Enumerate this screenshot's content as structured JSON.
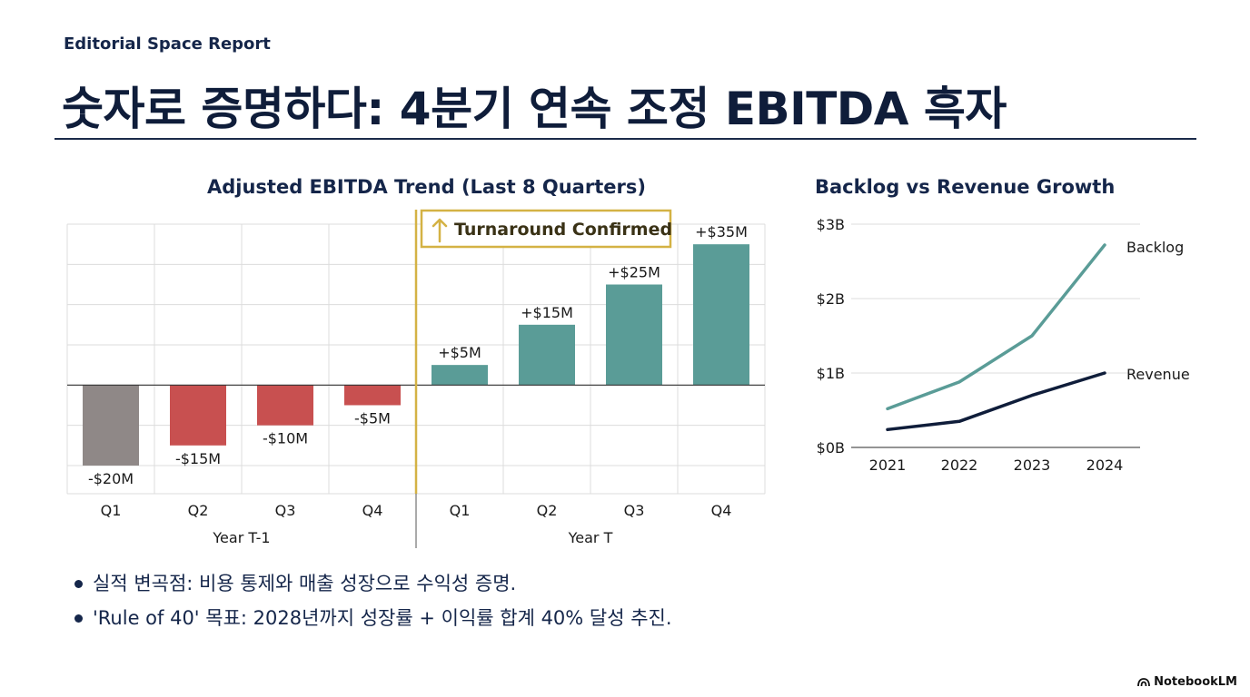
{
  "header": {
    "kicker": "Editorial Space Report",
    "title": "숫자로 증명하다: 4분기 연속 조정 EBITDA 흑자"
  },
  "colors": {
    "negative_red": "#c85050",
    "negative_gray": "#8f8887",
    "positive_teal": "#5a9c97",
    "highlight_gold": "#d4b244",
    "navy": "#0f1d3a"
  },
  "chart_data": [
    {
      "type": "bar",
      "title": "Adjusted EBITDA Trend (Last 8 Quarters)",
      "categories": [
        "Q1",
        "Q2",
        "Q3",
        "Q4",
        "Q1",
        "Q2",
        "Q3",
        "Q4"
      ],
      "groups": [
        {
          "label": "Year T-1",
          "categories": [
            "Q1",
            "Q2",
            "Q3",
            "Q4"
          ]
        },
        {
          "label": "Year T",
          "categories": [
            "Q1",
            "Q2",
            "Q3",
            "Q4"
          ]
        }
      ],
      "values": [
        -20,
        -15,
        -10,
        -5,
        5,
        15,
        25,
        35
      ],
      "data_labels": [
        "-$20M",
        "-$15M",
        "-$10M",
        "-$5M",
        "+$5M",
        "+$15M",
        "+$25M",
        "+$35M"
      ],
      "bar_colors": [
        "#8f8887",
        "#c85050",
        "#c85050",
        "#c85050",
        "#5a9c97",
        "#5a9c97",
        "#5a9c97",
        "#5a9c97"
      ],
      "ylim": [
        -27,
        40
      ],
      "grid": true,
      "annotation": {
        "text": "Turnaround Confirmed",
        "icon": "arrow-up-icon",
        "between_index": 3
      }
    },
    {
      "type": "line",
      "title": "Backlog vs Revenue Growth",
      "x": [
        "2021",
        "2022",
        "2023",
        "2024"
      ],
      "series": [
        {
          "name": "Backlog",
          "values": [
            0.52,
            0.88,
            1.5,
            2.72
          ],
          "color": "#5a9c97"
        },
        {
          "name": "Revenue",
          "values": [
            0.24,
            0.35,
            0.7,
            1.0
          ],
          "color": "#0f1d3a"
        }
      ],
      "ylim": [
        0,
        3
      ],
      "yticks": [
        0,
        1,
        2,
        3
      ],
      "ytick_labels": [
        "$0B",
        "$1B",
        "$2B",
        "$3B"
      ],
      "grid": true
    }
  ],
  "bullets": [
    "실적 변곡점: 비용 통제와 매출 성장으로 수익성 증명.",
    "'Rule of 40' 목표: 2028년까지 성장률 + 이익률 합계 40% 달성 추진."
  ],
  "brand": {
    "label": "NotebookLM",
    "icon": "notebooklm-logo-icon"
  }
}
